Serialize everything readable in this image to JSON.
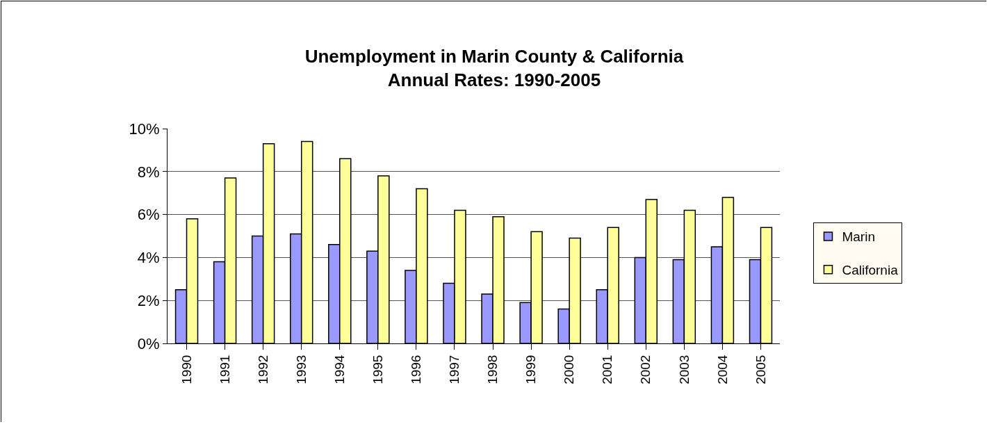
{
  "chart_data": {
    "type": "bar",
    "title": "Unemployment in Marin County & California",
    "subtitle": "Annual Rates: 1990-2005",
    "categories": [
      "1990",
      "1991",
      "1992",
      "1993",
      "1994",
      "1995",
      "1996",
      "1997",
      "1998",
      "1999",
      "2000",
      "2001",
      "2002",
      "2003",
      "2004",
      "2005"
    ],
    "series": [
      {
        "name": "Marin",
        "color": "#9999ff",
        "values": [
          2.5,
          3.8,
          5.0,
          5.1,
          4.6,
          4.3,
          3.4,
          2.8,
          2.3,
          1.9,
          1.6,
          2.5,
          4.0,
          3.9,
          4.5,
          3.9
        ]
      },
      {
        "name": "California",
        "color": "#ffff99",
        "values": [
          5.8,
          7.7,
          9.3,
          9.4,
          8.6,
          7.8,
          7.2,
          6.2,
          5.9,
          5.2,
          4.9,
          5.4,
          6.7,
          6.2,
          6.8,
          5.4
        ]
      }
    ],
    "ylim": [
      0,
      10
    ],
    "yticks": [
      {
        "value": 0,
        "label": "0%"
      },
      {
        "value": 2,
        "label": "2%"
      },
      {
        "value": 4,
        "label": "4%"
      },
      {
        "value": 6,
        "label": "6%"
      },
      {
        "value": 8,
        "label": "8%"
      },
      {
        "value": 10,
        "label": "10%"
      }
    ],
    "grid": "y",
    "legend": "right"
  }
}
